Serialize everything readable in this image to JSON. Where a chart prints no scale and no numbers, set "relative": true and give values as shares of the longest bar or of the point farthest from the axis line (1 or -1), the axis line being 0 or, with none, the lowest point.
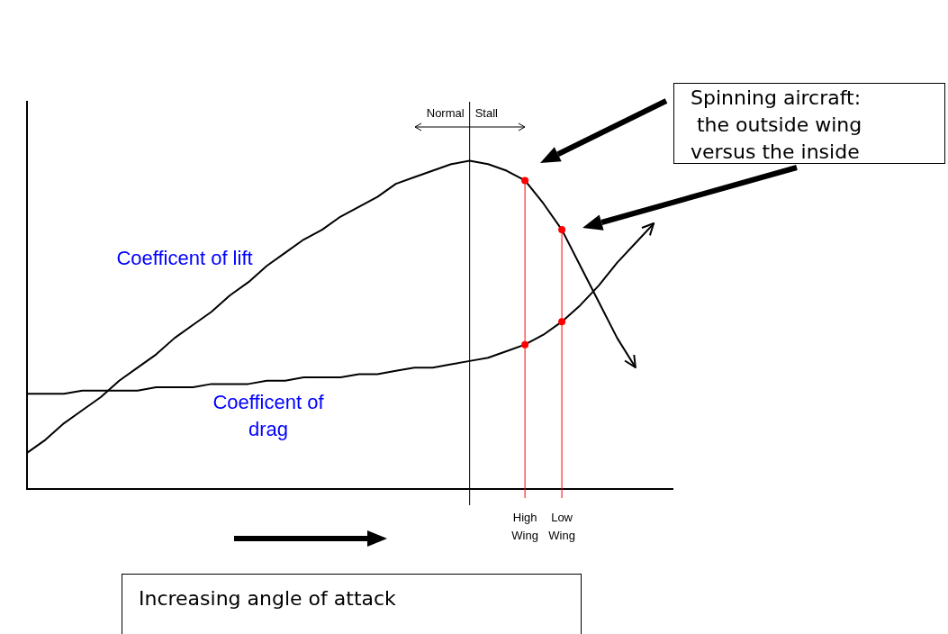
{
  "chart_data": {
    "type": "line",
    "relative": true,
    "legend": false,
    "tick_labels": false,
    "grid": false,
    "categories": [
      null,
      null,
      null,
      null,
      null,
      null,
      null,
      null,
      null,
      null,
      null,
      null,
      null,
      null,
      null,
      null,
      null,
      null,
      null,
      null,
      null,
      null,
      null,
      null,
      null,
      null,
      null,
      null,
      null,
      null,
      null,
      null,
      null,
      null,
      null,
      null
    ],
    "series": [
      {
        "name": "Coefficent of lift",
        "color": "#000000",
        "marker": "none",
        "values": [
          0.11,
          0.15,
          0.2,
          0.24,
          0.28,
          0.33,
          0.37,
          0.41,
          0.46,
          0.5,
          0.54,
          0.59,
          0.63,
          0.68,
          0.72,
          0.76,
          0.79,
          0.83,
          0.86,
          0.89,
          0.93,
          0.95,
          0.97,
          0.99,
          1.0,
          0.99,
          0.97,
          0.94,
          0.87,
          0.79,
          0.68,
          0.57,
          0.46,
          0.37,
          null,
          null
        ]
      },
      {
        "name": "Coefficent of drag",
        "color": "#000000",
        "marker": "none",
        "values": [
          0.29,
          0.29,
          0.29,
          0.3,
          0.3,
          0.3,
          0.3,
          0.31,
          0.31,
          0.31,
          0.32,
          0.32,
          0.32,
          0.33,
          0.33,
          0.34,
          0.34,
          0.34,
          0.35,
          0.35,
          0.36,
          0.37,
          0.37,
          0.38,
          0.39,
          0.4,
          0.42,
          0.44,
          0.47,
          0.51,
          0.56,
          0.62,
          0.69,
          0.75,
          0.81,
          null
        ]
      }
    ],
    "xlabel": "Increasing angle of attack",
    "annotations": [
      "Spinning aircraft:",
      " the outside wing",
      "versus the inside",
      "Normal",
      "Stall",
      "High Wing",
      "Low Wing"
    ]
  }
}
